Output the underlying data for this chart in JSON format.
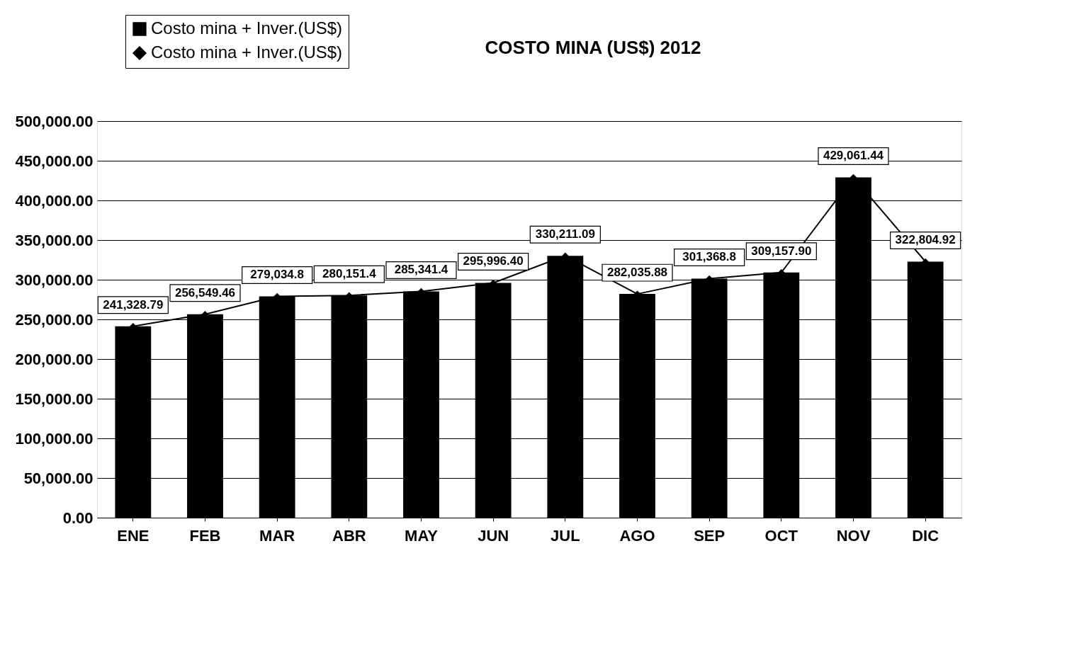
{
  "chart_data": {
    "type": "bar",
    "title": "COSTO MINA (US$) 2012",
    "categories": [
      "ENE",
      "FEB",
      "MAR",
      "ABR",
      "MAY",
      "JUN",
      "JUL",
      "AGO",
      "SEP",
      "OCT",
      "NOV",
      "DIC"
    ],
    "series": [
      {
        "name": "Costo mina + Inver.(US$)",
        "color": "#000000",
        "values": [
          241328.79,
          256549.46,
          279034.8,
          280151.4,
          285341.4,
          295996.4,
          330211.09,
          282035.88,
          301368.8,
          309157.9,
          429061.44,
          322804.92
        ]
      },
      {
        "name": "Costo mina + Inver.(US$)",
        "type": "line",
        "color": "#000000",
        "marker": "diamond",
        "values": [
          241328.79,
          256549.46,
          279034.8,
          280151.4,
          285341.4,
          295996.4,
          330211.09,
          282035.88,
          301368.8,
          309157.9,
          429061.44,
          322804.92
        ],
        "value_labels": [
          "241,328.79",
          "256,549.46",
          "279,034.8",
          "280,151.4",
          "285,341.4",
          "295,996.40",
          "330,211.09",
          "282,035.88",
          "301,368.8",
          "309,157.90",
          "429,061.44",
          "322,804.92"
        ]
      }
    ],
    "ylim": [
      0,
      500000
    ],
    "yticks": [
      {
        "value": 0,
        "label": "0.00"
      },
      {
        "value": 50000,
        "label": "50,000.00"
      },
      {
        "value": 100000,
        "label": "100,000.00"
      },
      {
        "value": 150000,
        "label": "150,000.00"
      },
      {
        "value": 200000,
        "label": "200,000.00"
      },
      {
        "value": 250000,
        "label": "250,000.00"
      },
      {
        "value": 300000,
        "label": "300,000.00"
      },
      {
        "value": 350000,
        "label": "350,000.00"
      },
      {
        "value": 400000,
        "label": "400,000.00"
      },
      {
        "value": 450000,
        "label": "450,000.00"
      },
      {
        "value": 500000,
        "label": "500,000.00"
      }
    ],
    "grid": "y",
    "legend": "top left"
  }
}
